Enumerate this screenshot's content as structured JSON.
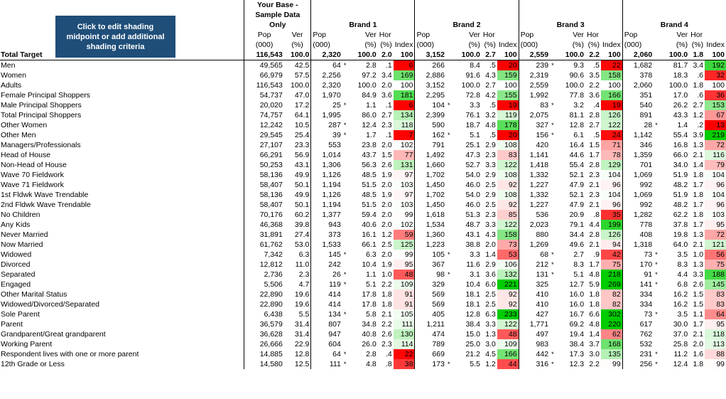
{
  "button": {
    "label": "Click to edit shading midpoint or add additional shading criteria"
  },
  "base_header": "Your Base - Sample Data Only",
  "brands": [
    "Brand 1",
    "Brand 2",
    "Brand 3",
    "Brand 4"
  ],
  "sub_headers": {
    "pop": "Pop",
    "pop_unit": "(000)",
    "ver": "Ver",
    "hor": "Hor",
    "pct": "(%)",
    "index": "Index"
  },
  "colors": {
    "red": "#ff0000",
    "green": "#00cc00",
    "white": "#ffffff",
    "button_bg": "#1f4e79"
  },
  "total": {
    "label": "Total Target",
    "base": [
      "116,543",
      "100.0"
    ],
    "brands": [
      {
        "pop": "2,320",
        "ver": "100.0",
        "hor": "2.0",
        "idx": "100"
      },
      {
        "pop": "3,152",
        "ver": "100.0",
        "hor": "2.7",
        "idx": "100"
      },
      {
        "pop": "2,559",
        "ver": "100.0",
        "hor": "2.2",
        "idx": "100"
      },
      {
        "pop": "2,060",
        "ver": "100.0",
        "hor": "1.8",
        "idx": "100"
      }
    ]
  },
  "rows": [
    {
      "label": "Men",
      "base": [
        "49,565",
        "42.5"
      ],
      "b": [
        [
          "64",
          "*",
          "2.8",
          ".1",
          "6"
        ],
        [
          "266",
          "",
          "8.4",
          ".5",
          "20"
        ],
        [
          "239",
          "*",
          "9.3",
          ".5",
          "22"
        ],
        [
          "1,682",
          "",
          "81.7",
          "3.4",
          "192"
        ]
      ]
    },
    {
      "label": "Women",
      "base": [
        "66,979",
        "57.5"
      ],
      "b": [
        [
          "2,256",
          "",
          "97.2",
          "3.4",
          "169"
        ],
        [
          "2,886",
          "",
          "91.6",
          "4.3",
          "159"
        ],
        [
          "2,319",
          "",
          "90.6",
          "3.5",
          "158"
        ],
        [
          "378",
          "",
          "18.3",
          ".6",
          "32"
        ]
      ]
    },
    {
      "label": "Adults",
      "base": [
        "116,543",
        "100.0"
      ],
      "b": [
        [
          "2,320",
          "",
          "100.0",
          "2.0",
          "100"
        ],
        [
          "3,152",
          "",
          "100.0",
          "2.7",
          "100"
        ],
        [
          "2,559",
          "",
          "100.0",
          "2.2",
          "100"
        ],
        [
          "2,060",
          "",
          "100.0",
          "1.8",
          "100"
        ]
      ]
    },
    {
      "label": "Female Principal Shoppers",
      "base": [
        "54,737",
        "47.0"
      ],
      "b": [
        [
          "1,970",
          "",
          "84.9",
          "3.6",
          "181"
        ],
        [
          "2,295",
          "",
          "72.8",
          "4.2",
          "155"
        ],
        [
          "1,992",
          "",
          "77.8",
          "3.6",
          "166"
        ],
        [
          "351",
          "",
          "17.0",
          ".6",
          "36"
        ]
      ]
    },
    {
      "label": "Male Principal Shoppers",
      "base": [
        "20,020",
        "17.2"
      ],
      "b": [
        [
          "25",
          "*",
          "1.1",
          ".1",
          "6"
        ],
        [
          "104",
          "*",
          "3.3",
          ".5",
          "19"
        ],
        [
          "83",
          "*",
          "3.2",
          ".4",
          "19"
        ],
        [
          "540",
          "",
          "26.2",
          "2.7",
          "153"
        ]
      ]
    },
    {
      "label": "Total Principal Shoppers",
      "base": [
        "74,757",
        "64.1"
      ],
      "b": [
        [
          "1,995",
          "",
          "86.0",
          "2.7",
          "134"
        ],
        [
          "2,399",
          "",
          "76.1",
          "3.2",
          "119"
        ],
        [
          "2,075",
          "",
          "81.1",
          "2.8",
          "126"
        ],
        [
          "891",
          "",
          "43.3",
          "1.2",
          "67"
        ]
      ]
    },
    {
      "label": "Other Women",
      "base": [
        "12,242",
        "10.5"
      ],
      "b": [
        [
          "287",
          "*",
          "12.4",
          "2.3",
          "118"
        ],
        [
          "590",
          "",
          "18.7",
          "4.8",
          "178"
        ],
        [
          "327",
          "*",
          "12.8",
          "2.7",
          "122"
        ],
        [
          "28",
          "*",
          "1.4",
          ".2",
          "13"
        ]
      ]
    },
    {
      "label": "Other Men",
      "base": [
        "29,545",
        "25.4"
      ],
      "b": [
        [
          "39",
          "*",
          "1.7",
          ".1",
          "7"
        ],
        [
          "162",
          "*",
          "5.1",
          ".5",
          "20"
        ],
        [
          "156",
          "*",
          "6.1",
          ".5",
          "24"
        ],
        [
          "1,142",
          "",
          "55.4",
          "3.9",
          "219"
        ]
      ]
    },
    {
      "label": "Managers/Professionals",
      "base": [
        "27,107",
        "23.3"
      ],
      "b": [
        [
          "553",
          "",
          "23.8",
          "2.0",
          "102"
        ],
        [
          "791",
          "",
          "25.1",
          "2.9",
          "108"
        ],
        [
          "420",
          "",
          "16.4",
          "1.5",
          "71"
        ],
        [
          "346",
          "",
          "16.8",
          "1.3",
          "72"
        ]
      ]
    },
    {
      "label": "Head of House",
      "base": [
        "66,291",
        "56.9"
      ],
      "b": [
        [
          "1,014",
          "",
          "43.7",
          "1.5",
          "77"
        ],
        [
          "1,492",
          "",
          "47.3",
          "2.3",
          "83"
        ],
        [
          "1,141",
          "",
          "44.6",
          "1.7",
          "78"
        ],
        [
          "1,359",
          "",
          "66.0",
          "2.1",
          "116"
        ]
      ]
    },
    {
      "label": "Non-Head of House",
      "base": [
        "50,253",
        "43.1"
      ],
      "b": [
        [
          "1,306",
          "",
          "56.3",
          "2.6",
          "131"
        ],
        [
          "1,660",
          "",
          "52.7",
          "3.3",
          "122"
        ],
        [
          "1,418",
          "",
          "55.4",
          "2.8",
          "129"
        ],
        [
          "701",
          "",
          "34.0",
          "1.4",
          "79"
        ]
      ]
    },
    {
      "label": "Wave 70 Fieldwork",
      "base": [
        "58,136",
        "49.9"
      ],
      "b": [
        [
          "1,126",
          "",
          "48.5",
          "1.9",
          "97"
        ],
        [
          "1,702",
          "",
          "54.0",
          "2.9",
          "108"
        ],
        [
          "1,332",
          "",
          "52.1",
          "2.3",
          "104"
        ],
        [
          "1,069",
          "",
          "51.9",
          "1.8",
          "104"
        ]
      ]
    },
    {
      "label": "Wave 71 Fieldwork",
      "base": [
        "58,407",
        "50.1"
      ],
      "b": [
        [
          "1,194",
          "",
          "51.5",
          "2.0",
          "103"
        ],
        [
          "1,450",
          "",
          "46.0",
          "2.5",
          "92"
        ],
        [
          "1,227",
          "",
          "47.9",
          "2.1",
          "96"
        ],
        [
          "992",
          "",
          "48.2",
          "1.7",
          "96"
        ]
      ]
    },
    {
      "label": "1st Fldwk Wave Trendable",
      "base": [
        "58,136",
        "49.9"
      ],
      "b": [
        [
          "1,126",
          "",
          "48.5",
          "1.9",
          "97"
        ],
        [
          "1,702",
          "",
          "54.0",
          "2.9",
          "108"
        ],
        [
          "1,332",
          "",
          "52.1",
          "2.3",
          "104"
        ],
        [
          "1,069",
          "",
          "51.9",
          "1.8",
          "104"
        ]
      ]
    },
    {
      "label": "2nd Fldwk Wave Trendable",
      "base": [
        "58,407",
        "50.1"
      ],
      "b": [
        [
          "1,194",
          "",
          "51.5",
          "2.0",
          "103"
        ],
        [
          "1,450",
          "",
          "46.0",
          "2.5",
          "92"
        ],
        [
          "1,227",
          "",
          "47.9",
          "2.1",
          "96"
        ],
        [
          "992",
          "",
          "48.2",
          "1.7",
          "96"
        ]
      ]
    },
    {
      "label": "No Children",
      "base": [
        "70,176",
        "60.2"
      ],
      "b": [
        [
          "1,377",
          "",
          "59.4",
          "2.0",
          "99"
        ],
        [
          "1,618",
          "",
          "51.3",
          "2.3",
          "85"
        ],
        [
          "536",
          "",
          "20.9",
          ".8",
          "35"
        ],
        [
          "1,282",
          "",
          "62.2",
          "1.8",
          "103"
        ]
      ]
    },
    {
      "label": "Any Kids",
      "base": [
        "46,368",
        "39.8"
      ],
      "b": [
        [
          "943",
          "",
          "40.6",
          "2.0",
          "102"
        ],
        [
          "1,534",
          "",
          "48.7",
          "3.3",
          "122"
        ],
        [
          "2,023",
          "",
          "79.1",
          "4.4",
          "199"
        ],
        [
          "778",
          "",
          "37.8",
          "1.7",
          "95"
        ]
      ]
    },
    {
      "label": "Never Married",
      "base": [
        "31,891",
        "27.4"
      ],
      "b": [
        [
          "373",
          "",
          "16.1",
          "1.2",
          "59"
        ],
        [
          "1,360",
          "",
          "43.1",
          "4.3",
          "158"
        ],
        [
          "880",
          "",
          "34.4",
          "2.8",
          "126"
        ],
        [
          "408",
          "",
          "19.8",
          "1.3",
          "72"
        ]
      ]
    },
    {
      "label": "Now Married",
      "base": [
        "61,762",
        "53.0"
      ],
      "b": [
        [
          "1,533",
          "",
          "66.1",
          "2.5",
          "125"
        ],
        [
          "1,223",
          "",
          "38.8",
          "2.0",
          "73"
        ],
        [
          "1,269",
          "",
          "49.6",
          "2.1",
          "94"
        ],
        [
          "1,318",
          "",
          "64.0",
          "2.1",
          "121"
        ]
      ]
    },
    {
      "label": "Widowed",
      "base": [
        "7,342",
        "6.3"
      ],
      "b": [
        [
          "145",
          "*",
          "6.3",
          "2.0",
          "99"
        ],
        [
          "105",
          "*",
          "3.3",
          "1.4",
          "53"
        ],
        [
          "68",
          "*",
          "2.7",
          ".9",
          "42"
        ],
        [
          "73",
          "*",
          "3.5",
          "1.0",
          "56"
        ]
      ]
    },
    {
      "label": "Divorced",
      "base": [
        "12,812",
        "11.0"
      ],
      "b": [
        [
          "242",
          "",
          "10.4",
          "1.9",
          "95"
        ],
        [
          "367",
          "",
          "11.6",
          "2.9",
          "106"
        ],
        [
          "212",
          "*",
          "8.3",
          "1.7",
          "75"
        ],
        [
          "170",
          "*",
          "8.3",
          "1.3",
          "75"
        ]
      ]
    },
    {
      "label": "Separated",
      "base": [
        "2,736",
        "2.3"
      ],
      "b": [
        [
          "26",
          "*",
          "1.1",
          "1.0",
          "48"
        ],
        [
          "98",
          "*",
          "3.1",
          "3.6",
          "132"
        ],
        [
          "131",
          "*",
          "5.1",
          "4.8",
          "218"
        ],
        [
          "91",
          "*",
          "4.4",
          "3.3",
          "188"
        ]
      ]
    },
    {
      "label": "Engaged",
      "base": [
        "5,506",
        "4.7"
      ],
      "b": [
        [
          "119",
          "*",
          "5.1",
          "2.2",
          "109"
        ],
        [
          "329",
          "",
          "10.4",
          "6.0",
          "221"
        ],
        [
          "325",
          "",
          "12.7",
          "5.9",
          "269"
        ],
        [
          "141",
          "*",
          "6.8",
          "2.6",
          "145"
        ]
      ]
    },
    {
      "label": "Other Marital Status",
      "base": [
        "22,890",
        "19.6"
      ],
      "b": [
        [
          "414",
          "",
          "17.8",
          "1.8",
          "91"
        ],
        [
          "569",
          "",
          "18.1",
          "2.5",
          "92"
        ],
        [
          "410",
          "",
          "16.0",
          "1.8",
          "82"
        ],
        [
          "334",
          "",
          "16.2",
          "1.5",
          "83"
        ]
      ]
    },
    {
      "label": "Widowed/Divorced/Separated",
      "base": [
        "22,890",
        "19.6"
      ],
      "b": [
        [
          "414",
          "",
          "17.8",
          "1.8",
          "91"
        ],
        [
          "569",
          "",
          "18.1",
          "2.5",
          "92"
        ],
        [
          "410",
          "",
          "16.0",
          "1.8",
          "82"
        ],
        [
          "334",
          "",
          "16.2",
          "1.5",
          "83"
        ]
      ]
    },
    {
      "label": "Sole Parent",
      "base": [
        "6,438",
        "5.5"
      ],
      "b": [
        [
          "134",
          "*",
          "5.8",
          "2.1",
          "105"
        ],
        [
          "405",
          "",
          "12.8",
          "6.3",
          "233"
        ],
        [
          "427",
          "",
          "16.7",
          "6.6",
          "302"
        ],
        [
          "73",
          "*",
          "3.5",
          "1.1",
          "64"
        ]
      ]
    },
    {
      "label": "Parent",
      "base": [
        "36,579",
        "31.4"
      ],
      "b": [
        [
          "807",
          "",
          "34.8",
          "2.2",
          "111"
        ],
        [
          "1,211",
          "",
          "38.4",
          "3.3",
          "122"
        ],
        [
          "1,771",
          "",
          "69.2",
          "4.8",
          "220"
        ],
        [
          "617",
          "",
          "30.0",
          "1.7",
          "95"
        ]
      ]
    },
    {
      "label": "Grandparent/Great grandparent",
      "base": [
        "36,628",
        "31.4"
      ],
      "b": [
        [
          "947",
          "",
          "40.8",
          "2.6",
          "130"
        ],
        [
          "474",
          "",
          "15.0",
          "1.3",
          "48"
        ],
        [
          "497",
          "",
          "19.4",
          "1.4",
          "62"
        ],
        [
          "762",
          "",
          "37.0",
          "2.1",
          "118"
        ]
      ]
    },
    {
      "label": "Working Parent",
      "base": [
        "26,666",
        "22.9"
      ],
      "b": [
        [
          "604",
          "",
          "26.0",
          "2.3",
          "114"
        ],
        [
          "789",
          "",
          "25.0",
          "3.0",
          "109"
        ],
        [
          "983",
          "",
          "38.4",
          "3.7",
          "168"
        ],
        [
          "532",
          "",
          "25.8",
          "2.0",
          "113"
        ]
      ]
    },
    {
      "label": "Respondent lives with one or more parent",
      "base": [
        "14,885",
        "12.8"
      ],
      "b": [
        [
          "64",
          "*",
          "2.8",
          ".4",
          "22"
        ],
        [
          "669",
          "",
          "21.2",
          "4.5",
          "166"
        ],
        [
          "442",
          "*",
          "17.3",
          "3.0",
          "135"
        ],
        [
          "231",
          "*",
          "11.2",
          "1.6",
          "88"
        ]
      ]
    },
    {
      "label": "12th Grade or Less",
      "base": [
        "14,580",
        "12.5"
      ],
      "b": [
        [
          "111",
          "*",
          "4.8",
          ".8",
          "38"
        ],
        [
          "173",
          "*",
          "5.5",
          "1.2",
          "44"
        ],
        [
          "316",
          "*",
          "12.3",
          "2.2",
          "99"
        ],
        [
          "256",
          "*",
          "12.4",
          "1.8",
          "99"
        ]
      ]
    }
  ]
}
